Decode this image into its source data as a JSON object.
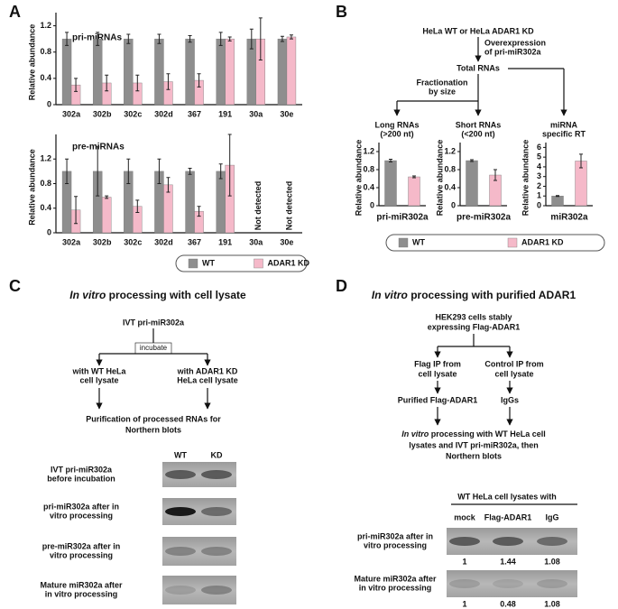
{
  "panel_labels": [
    "A",
    "B",
    "C",
    "D"
  ],
  "chart_data": [
    {
      "type": "bar",
      "title": "pri-miRNAs",
      "y_label": "Relative abundance",
      "categories": [
        "302a",
        "302b",
        "302c",
        "302d",
        "367",
        "191",
        "30a",
        "30e"
      ],
      "series": [
        {
          "color": "#8e8e8e",
          "values": [
            1.0,
            1.0,
            1.0,
            1.0,
            1.0,
            1.0,
            1.0,
            1.0
          ],
          "errors": [
            0.1,
            0.1,
            0.07,
            0.07,
            0.05,
            0.1,
            0.15,
            0.04
          ]
        },
        {
          "color": "#f5b9c9",
          "values": [
            0.3,
            0.33,
            0.33,
            0.35,
            0.37,
            1.0,
            1.0,
            1.03
          ],
          "errors": [
            0.1,
            0.12,
            0.12,
            0.12,
            0.1,
            0.03,
            0.32,
            0.03
          ]
        }
      ],
      "ylim": [
        0,
        1.4
      ],
      "yticks": [
        0,
        0.4,
        0.8,
        1.2
      ]
    },
    {
      "type": "bar",
      "title": "pre-miRNAs",
      "y_label": "Relative abundance",
      "categories": [
        "302a",
        "302b",
        "302c",
        "302d",
        "367",
        "191",
        "30a",
        "30e"
      ],
      "series": [
        {
          "name": "WT",
          "color": "#8e8e8e",
          "values": [
            1.0,
            1.0,
            1.0,
            1.0,
            1.0,
            1.0,
            null,
            null
          ],
          "errors": [
            0.2,
            0.4,
            0.2,
            0.2,
            0.05,
            0.12,
            null,
            null
          ]
        },
        {
          "name": "ADAR1 KD",
          "color": "#f5b9c9",
          "values": [
            0.37,
            0.58,
            0.43,
            0.78,
            0.35,
            1.1,
            null,
            null
          ],
          "errors": [
            0.22,
            0.02,
            0.1,
            0.12,
            0.08,
            0.5,
            null,
            null
          ]
        }
      ],
      "annotations": [
        {
          "category": "30a",
          "text": "Not detected"
        },
        {
          "category": "30e",
          "text": "Not detected"
        }
      ],
      "ylim": [
        0,
        1.6
      ],
      "yticks": [
        0,
        0.4,
        0.8,
        1.2
      ]
    },
    {
      "type": "bar",
      "x_label": "pri-miR302a",
      "y_label": "Relative abundance",
      "series": [
        {
          "color": "#8e8e8e",
          "values": [
            1.0
          ],
          "errors": [
            0.03
          ]
        },
        {
          "color": "#f5b9c9",
          "values": [
            0.64
          ],
          "errors": [
            0.02
          ]
        }
      ],
      "ylim": [
        0,
        1.4
      ],
      "yticks": [
        0,
        0.4,
        0.8,
        1.2
      ]
    },
    {
      "type": "bar",
      "x_label": "pre-miR302a",
      "y_label": "Relative abundance",
      "series": [
        {
          "color": "#8e8e8e",
          "values": [
            1.0
          ],
          "errors": [
            0.02
          ]
        },
        {
          "color": "#f5b9c9",
          "values": [
            0.68
          ],
          "errors": [
            0.12
          ]
        }
      ],
      "ylim": [
        0,
        1.4
      ],
      "yticks": [
        0,
        0.4,
        0.8,
        1.2
      ]
    },
    {
      "type": "bar",
      "x_label": "miR302a",
      "y_label": "Relative abundance",
      "series": [
        {
          "name": "WT",
          "color": "#8e8e8e",
          "values": [
            1.0
          ],
          "errors": [
            0.05
          ]
        },
        {
          "name": "ADAR1 KD",
          "color": "#f5b9c9",
          "values": [
            4.6
          ],
          "errors": [
            0.7
          ]
        }
      ],
      "ylim": [
        0,
        6.5
      ],
      "yticks": [
        0,
        1,
        2,
        3,
        4,
        5,
        6
      ]
    }
  ],
  "panel_b": {
    "source": "HeLa WT or HeLa ADAR1 KD",
    "step": [
      "Overexpression",
      "of pri-miR302a"
    ],
    "total": "Total RNAs",
    "fractionation": [
      "Fractionation",
      "by size"
    ],
    "branches": [
      [
        "Long RNAs",
        "(>200 nt)"
      ],
      [
        "Short RNAs",
        "(<200 nt)"
      ],
      [
        "miRNA",
        "specific RT"
      ]
    ]
  },
  "panel_c": {
    "title": {
      "italic": "In vitro",
      "text": " processing with cell lysate"
    },
    "source": "IVT pri-miR302a",
    "step": "incubate",
    "branches": [
      [
        "with WT HeLa",
        "cell lysate"
      ],
      [
        "with ADAR1 KD",
        "HeLa cell lysate"
      ]
    ],
    "result": [
      "Purification of processed RNAs for",
      "Northern blots"
    ],
    "blot": {
      "columns": [
        "WT",
        "KD"
      ],
      "rows": [
        [
          "IVT pri-miR302a",
          "before incubation"
        ],
        [
          "pri-miR302a after in",
          "vitro processing"
        ],
        [
          "pre-miR302a after in",
          "vitro processing"
        ],
        [
          "Mature miR302a after",
          "in vitro processing"
        ]
      ]
    }
  },
  "panel_d": {
    "title": {
      "italic": "In vitro",
      "text": " processing with purified ADAR1"
    },
    "source": [
      "HEK293 cells stably",
      "expressing Flag-ADAR1"
    ],
    "branches": [
      [
        "Flag IP from",
        "cell lysate"
      ],
      [
        "Control IP from",
        "cell lysate"
      ]
    ],
    "products": [
      "Purified Flag-ADAR1",
      "IgGs"
    ],
    "result": {
      "first": {
        "italic": "In vitro",
        "text": " processing with WT HeLa cell"
      },
      "rest": [
        "lysates and IVT pri-miR302a, then",
        "Northern blots"
      ]
    },
    "blot": {
      "header": "WT HeLa cell lysates with",
      "columns": [
        "mock",
        "Flag-ADAR1",
        "IgG"
      ],
      "rows": [
        {
          "label": [
            "pri-miR302a after in",
            "vitro processing"
          ],
          "values": [
            1,
            1.44,
            1.08
          ]
        },
        {
          "label": [
            "Mature miR302a after",
            "in vitro processing"
          ],
          "values": [
            1,
            0.48,
            1.08
          ]
        }
      ]
    }
  }
}
